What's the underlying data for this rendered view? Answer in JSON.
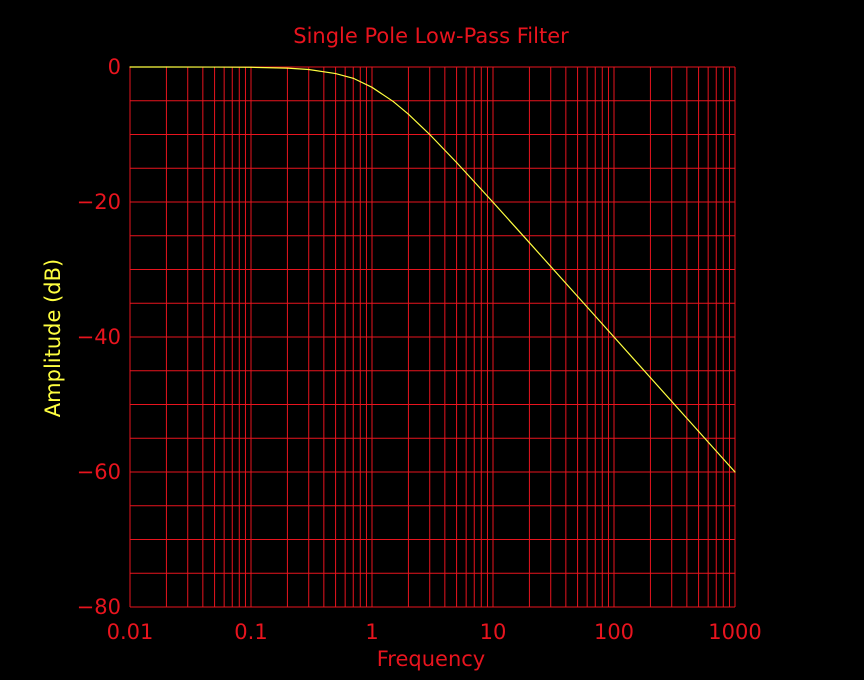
{
  "colors": {
    "background": "#000000",
    "grid": "#e8141e",
    "axis_text": "#e8141e",
    "curve": "#ffff40",
    "ylabel_text": "#ffff40"
  },
  "chart_data": {
    "type": "line",
    "title": "Single Pole Low-Pass Filter",
    "xlabel": "Frequency",
    "ylabel": "Amplitude (dB)",
    "xscale": "log",
    "xlim": [
      0.01,
      1000
    ],
    "ylim": [
      -80,
      0
    ],
    "grid": true,
    "x_ticks": [
      0.01,
      0.1,
      1,
      10,
      100,
      1000
    ],
    "x_tick_labels": [
      "0.01",
      "0.1",
      "1",
      "10",
      "100",
      "1000"
    ],
    "y_ticks": [
      0,
      -20,
      -40,
      -60,
      -80
    ],
    "y_tick_labels": [
      "0",
      "−20",
      "−40",
      "−60",
      "−80"
    ],
    "series": [
      {
        "x": [
          0.01,
          0.02,
          0.05,
          0.1,
          0.2,
          0.3,
          0.5,
          0.7,
          1,
          1.5,
          2,
          3,
          5,
          7,
          10,
          20,
          50,
          100,
          200,
          500,
          1000
        ],
        "y": [
          0,
          0,
          -0.01,
          -0.04,
          -0.17,
          -0.37,
          -0.97,
          -1.67,
          -3.01,
          -5.12,
          -6.99,
          -10.0,
          -14.15,
          -17.0,
          -20.04,
          -26.03,
          -33.98,
          -40.0,
          -46.02,
          -53.98,
          -60.0
        ]
      }
    ]
  }
}
